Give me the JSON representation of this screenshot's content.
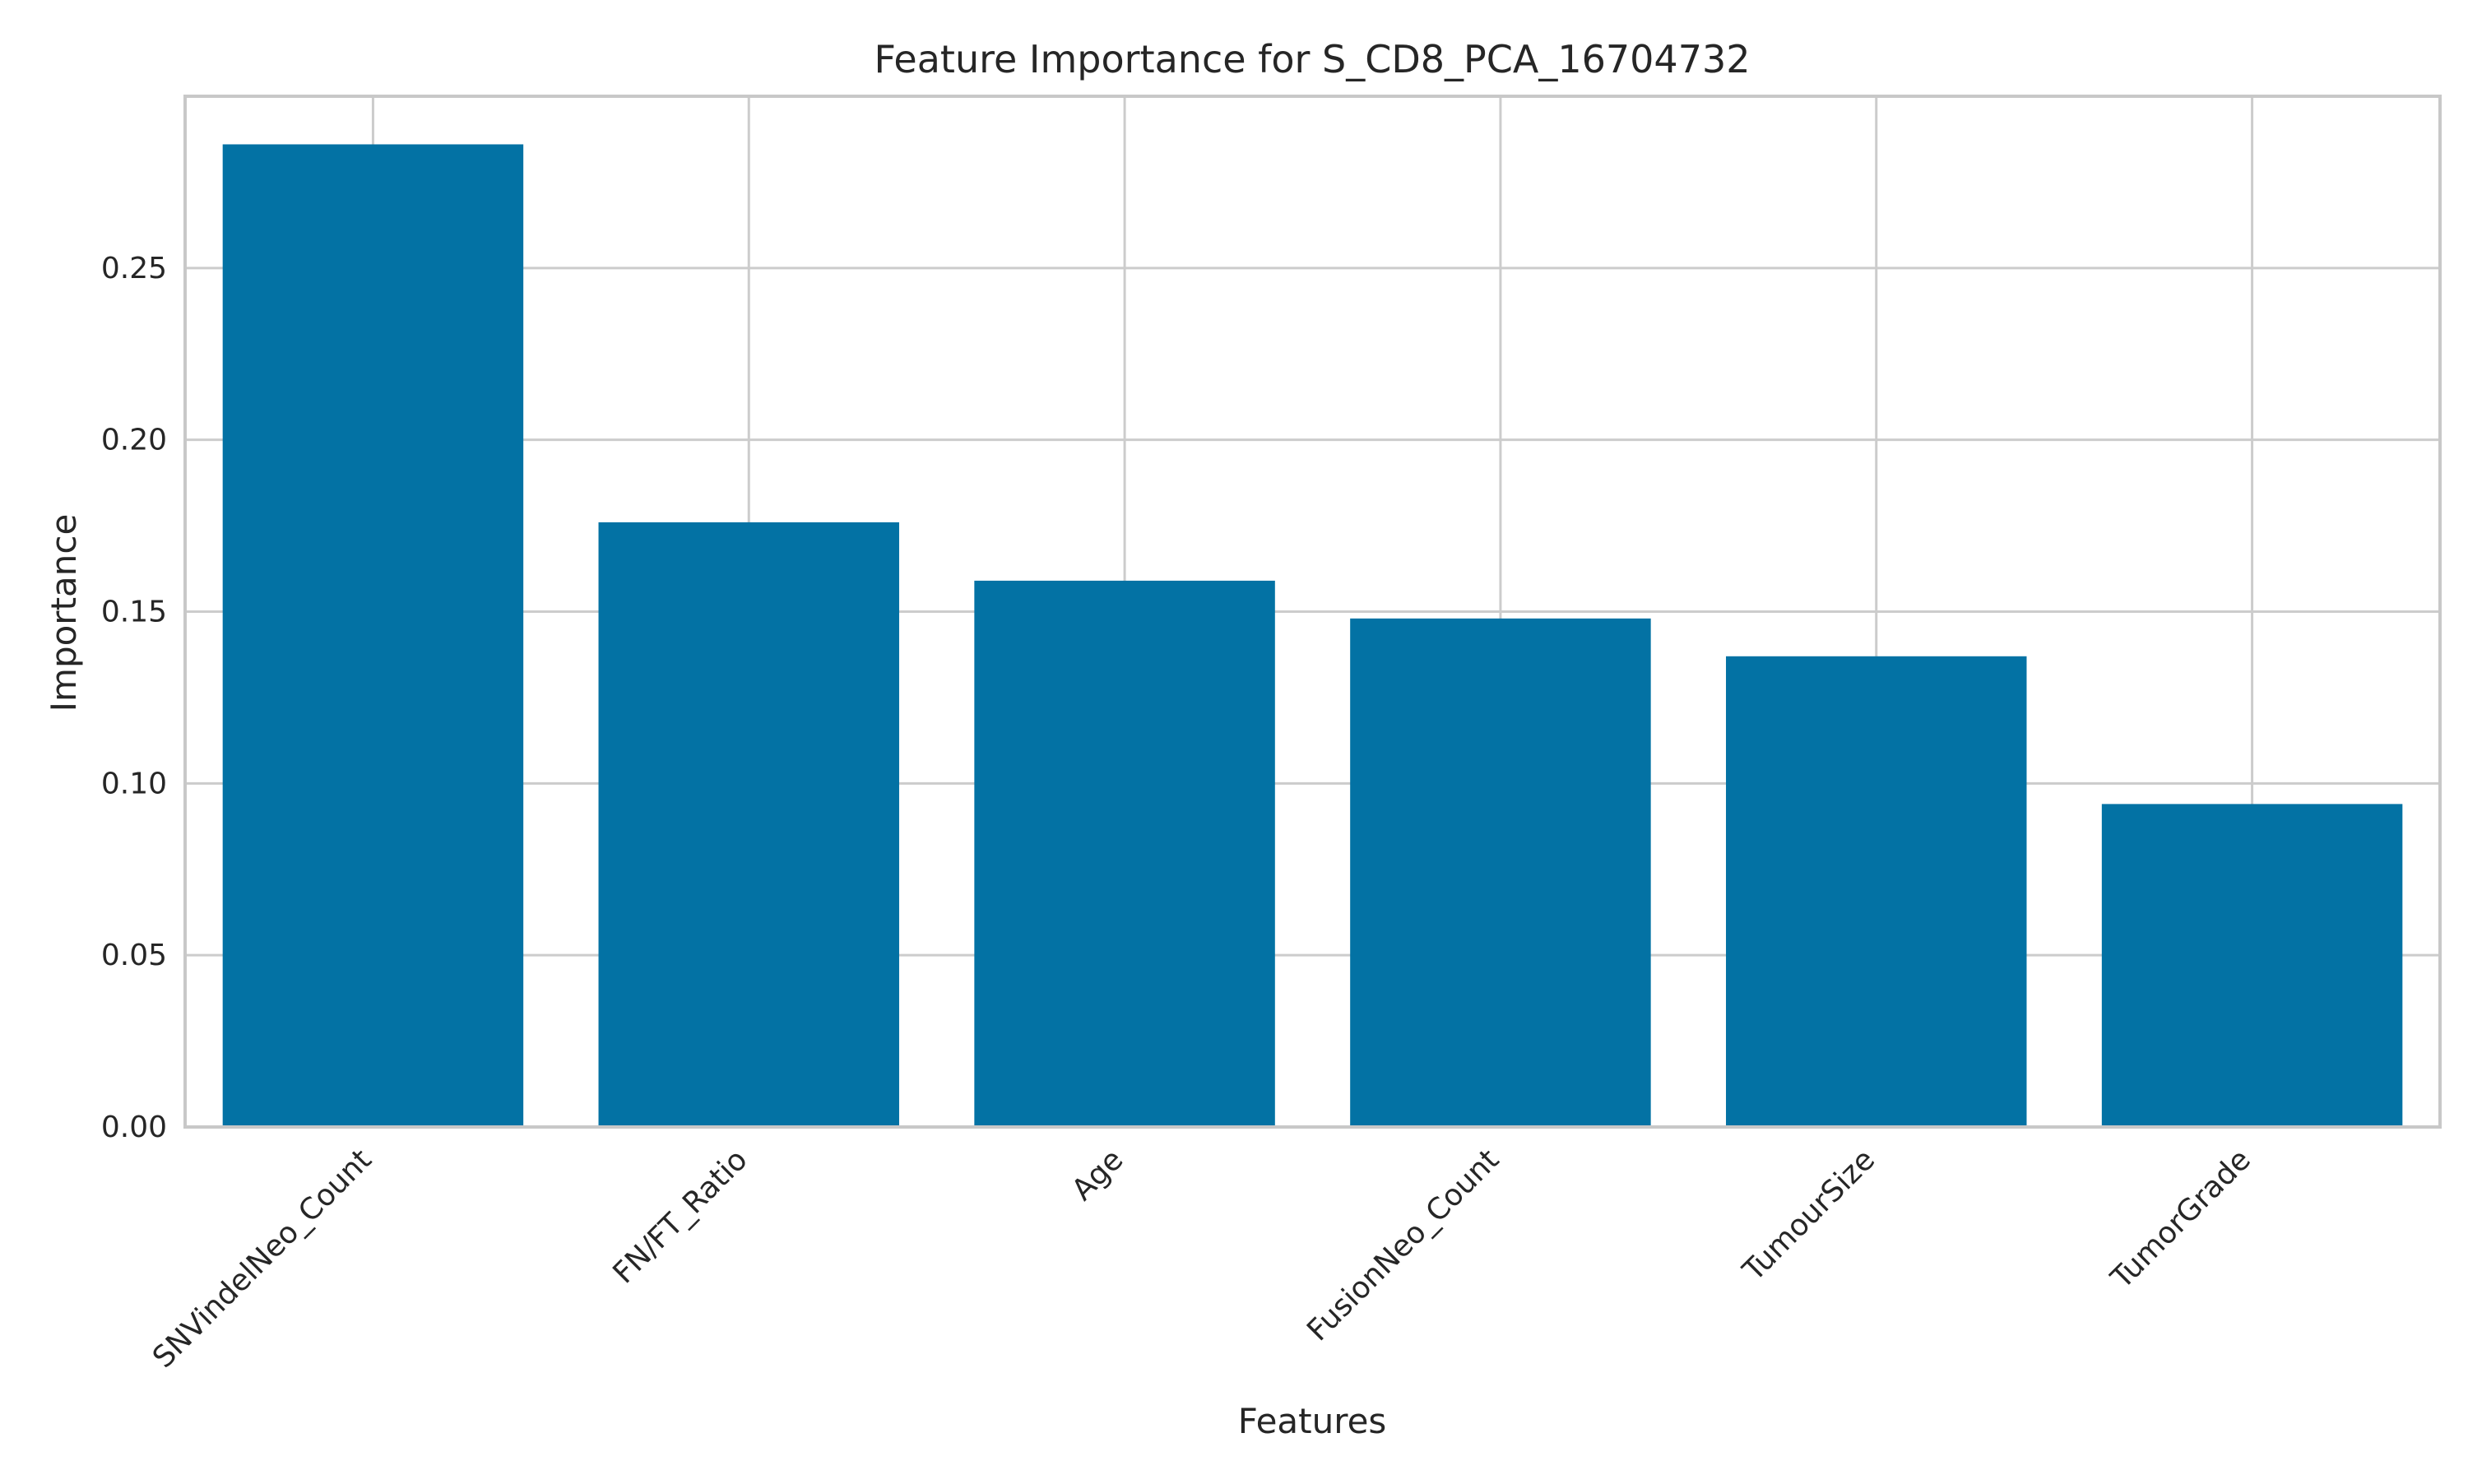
{
  "chart_data": {
    "type": "bar",
    "title": "Feature Importance for S_CD8_PCA_16704732",
    "xlabel": "Features",
    "ylabel": "Importance",
    "categories": [
      "SNVindelNeo_Count",
      "FN/FT_Ratio",
      "Age",
      "FusionNeo_Count",
      "TumourSize",
      "TumorGrade"
    ],
    "values": [
      0.286,
      0.176,
      0.159,
      0.148,
      0.137,
      0.094
    ],
    "ylim": [
      0,
      0.3
    ],
    "yticks": [
      "0.00",
      "0.05",
      "0.10",
      "0.15",
      "0.20",
      "0.25"
    ],
    "grid": true,
    "bar_color": "#0372a4",
    "grid_color": "#cccccc",
    "frame_color": "#c8c8c8",
    "legend": "none"
  }
}
